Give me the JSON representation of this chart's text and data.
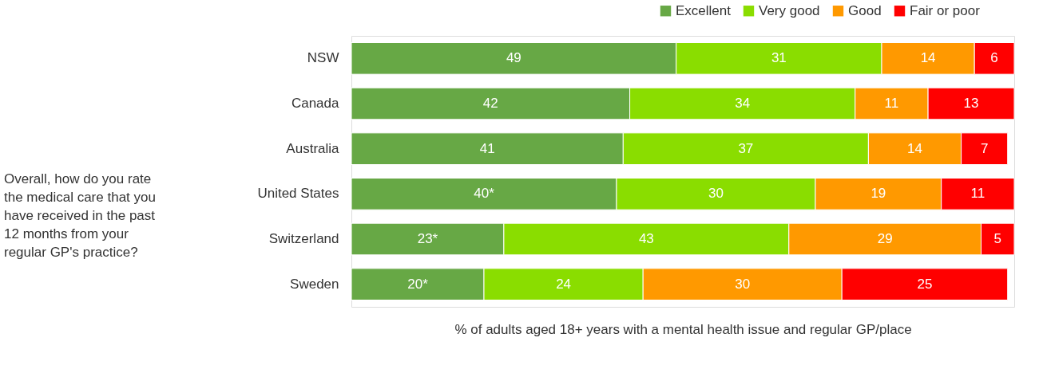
{
  "chart_data": {
    "type": "bar",
    "orientation": "horizontal",
    "stacked": true,
    "categories": [
      "NSW",
      "Canada",
      "Australia",
      "United States",
      "Switzerland",
      "Sweden"
    ],
    "series": [
      {
        "name": "Excellent",
        "color": "#67a845",
        "values": [
          49,
          42,
          41,
          40,
          23,
          20
        ],
        "value_labels": [
          "49",
          "42",
          "41",
          "40*",
          "23*",
          "20*"
        ]
      },
      {
        "name": "Very good",
        "color": "#8add00",
        "values": [
          31,
          34,
          37,
          30,
          43,
          24
        ],
        "value_labels": [
          "31",
          "34",
          "37",
          "30",
          "43",
          "24"
        ]
      },
      {
        "name": "Good",
        "color": "#ff9900",
        "values": [
          14,
          11,
          14,
          19,
          29,
          30
        ],
        "value_labels": [
          "14",
          "11",
          "14",
          "19",
          "29",
          "30"
        ]
      },
      {
        "name": "Fair or poor",
        "color": "#ff0000",
        "values": [
          6,
          13,
          7,
          11,
          5,
          25
        ],
        "value_labels": [
          "6",
          "13",
          "7",
          "11",
          "5",
          "25"
        ]
      }
    ],
    "xlim": [
      0,
      100
    ],
    "xlabel": "% of adults aged 18+ years with a mental health issue and regular GP/place",
    "annotations": [
      "Overall, how do you rate the medical care that you have received in the past 12 months from your regular GP's practice?"
    ],
    "legend": "top right",
    "tick_labels": "y",
    "grid": false
  }
}
